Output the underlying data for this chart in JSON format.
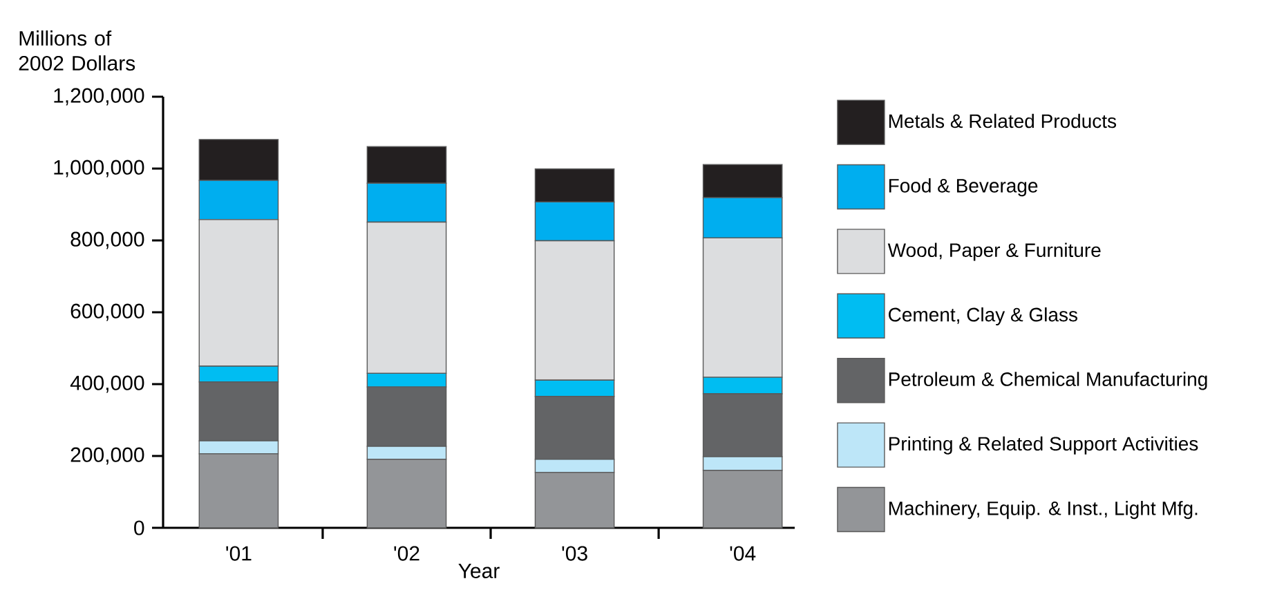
{
  "chart_data": {
    "type": "bar",
    "stacked": true,
    "ylabel": "Millions of 2002 Dollars",
    "xlabel": "Year",
    "categories": [
      "'01",
      "'02",
      "'03",
      "'04"
    ],
    "series": [
      {
        "name": "Machinery, Equip. & Inst., Light Mfg.",
        "color": "#939598",
        "values": [
          206000,
          191000,
          154000,
          160000
        ]
      },
      {
        "name": "Printing & Related Support Activities",
        "color": "#bde6f8",
        "values": [
          36000,
          36000,
          37000,
          38000
        ]
      },
      {
        "name": "Petroleum & Chemical Manufacturing",
        "color": "#636466",
        "values": [
          164000,
          165000,
          175000,
          175000
        ]
      },
      {
        "name": "Cement, Clay & Glass",
        "color": "#00bdf2",
        "values": [
          44000,
          38000,
          45000,
          46000
        ]
      },
      {
        "name": "Wood, Paper & Furniture",
        "color": "#dcdddf",
        "values": [
          408000,
          421000,
          388000,
          388000
        ]
      },
      {
        "name": "Food & Beverage",
        "color": "#00aeef",
        "values": [
          109000,
          108000,
          108000,
          112000
        ]
      },
      {
        "name": "Metals & Related Products",
        "color": "#231f20",
        "values": [
          114000,
          102000,
          92000,
          92000
        ]
      }
    ],
    "ylim": [
      0,
      1200000
    ],
    "yticks": [
      0,
      {
        "value": 200000,
        "label": "200,000"
      },
      {
        "value": 400000,
        "label": "400,000"
      },
      {
        "value": 600000,
        "label": "600,000"
      },
      {
        "value": 800000,
        "label": "800,000"
      },
      {
        "value": 1000000,
        "label": "1,000,000"
      },
      {
        "value": 1200000,
        "label": "1,200,000"
      }
    ],
    "grid": false,
    "legend": "right"
  }
}
